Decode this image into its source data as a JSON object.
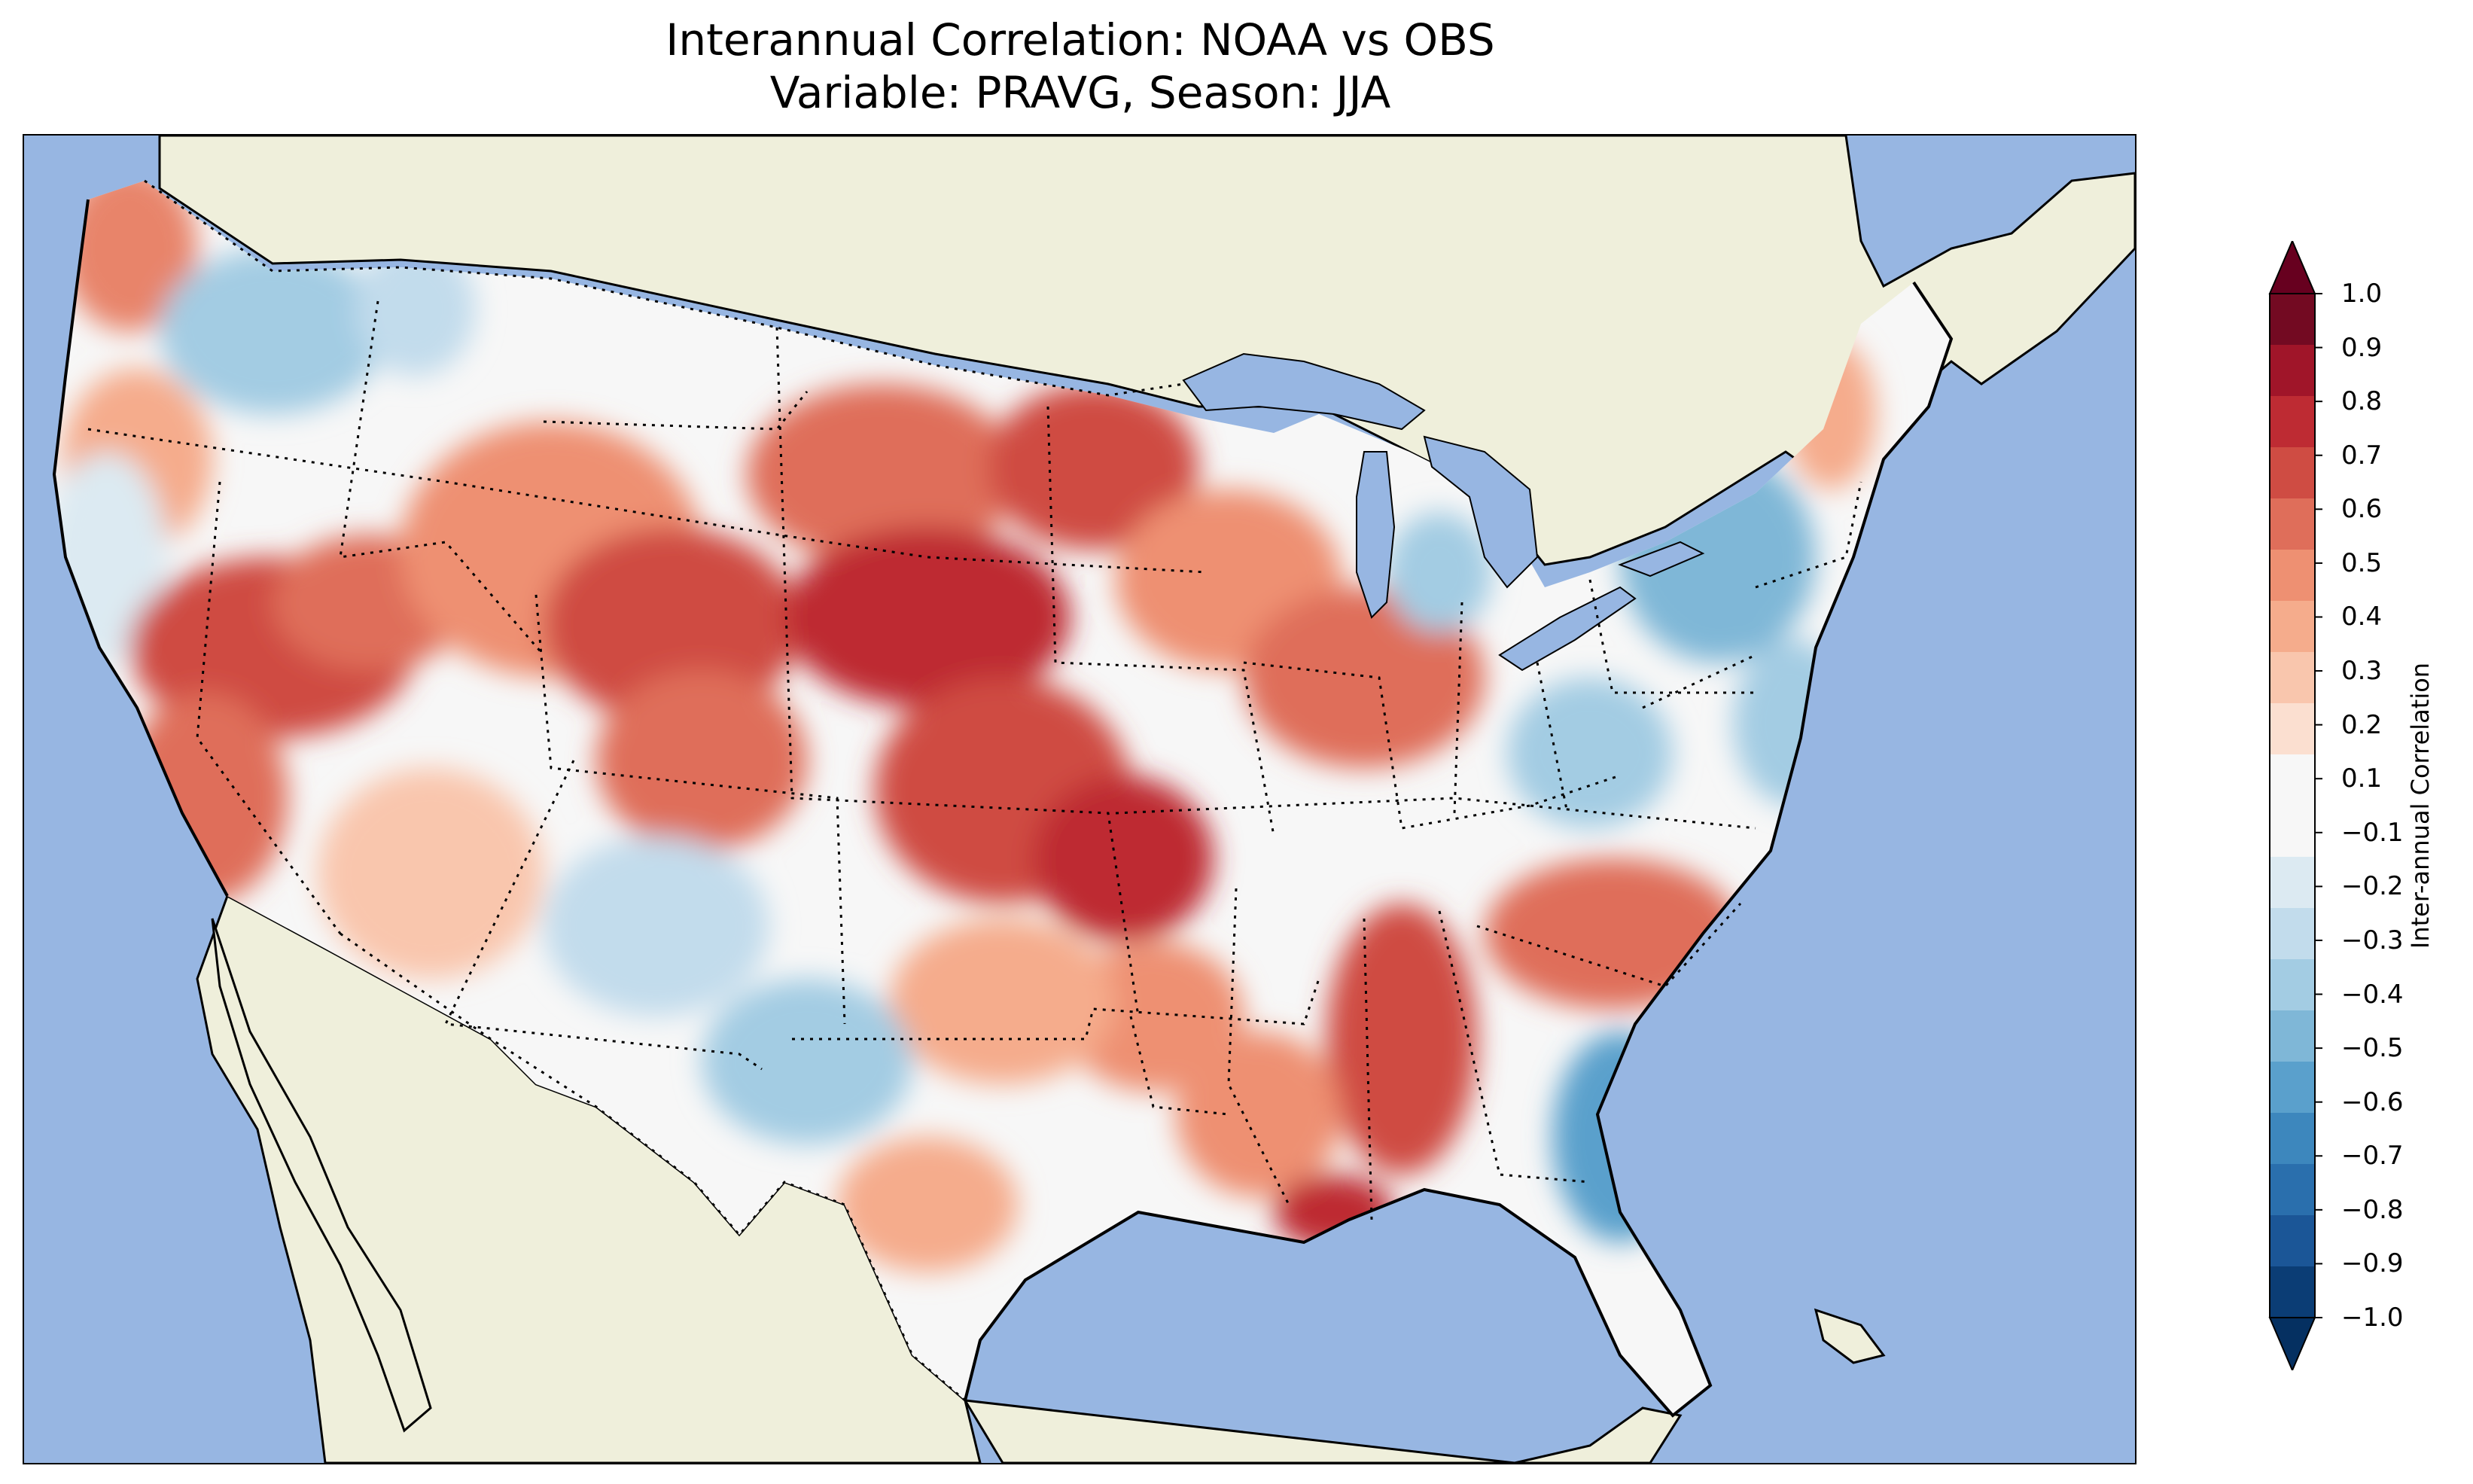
{
  "title": {
    "line1": "Interannual Correlation: NOAA vs OBS",
    "line2": "Variable: PRAVG, Season: JJA"
  },
  "colors": {
    "ocean": "#97b6e2",
    "land": "#efefdb",
    "border": "#000000"
  },
  "colorbar": {
    "label": "Inter-annual Correlation",
    "ticks": [
      "1.0",
      "0.9",
      "0.8",
      "0.7",
      "0.6",
      "0.5",
      "0.4",
      "0.3",
      "0.2",
      "0.1",
      "−0.1",
      "−0.2",
      "−0.3",
      "−0.4",
      "−0.5",
      "−0.6",
      "−0.7",
      "−0.8",
      "−0.9",
      "−1.0"
    ],
    "levels": [
      {
        "from": 0.9,
        "to": 1.0,
        "color": "#730a22"
      },
      {
        "from": 0.8,
        "to": 0.9,
        "color": "#a01529"
      },
      {
        "from": 0.7,
        "to": 0.8,
        "color": "#be2b33"
      },
      {
        "from": 0.6,
        "to": 0.7,
        "color": "#cf4c43"
      },
      {
        "from": 0.5,
        "to": 0.6,
        "color": "#df6e5a"
      },
      {
        "from": 0.4,
        "to": 0.5,
        "color": "#ee9072"
      },
      {
        "from": 0.3,
        "to": 0.4,
        "color": "#f5ac8c"
      },
      {
        "from": 0.2,
        "to": 0.3,
        "color": "#f9c6ad"
      },
      {
        "from": 0.1,
        "to": 0.2,
        "color": "#fbdfd0"
      },
      {
        "from": -0.1,
        "to": 0.1,
        "color": "#f7f7f7"
      },
      {
        "from": -0.2,
        "to": -0.1,
        "color": "#dceaf2"
      },
      {
        "from": -0.3,
        "to": -0.2,
        "color": "#c2dcec"
      },
      {
        "from": -0.4,
        "to": -0.3,
        "color": "#a3cce3"
      },
      {
        "from": -0.5,
        "to": -0.4,
        "color": "#7fb7d7"
      },
      {
        "from": -0.6,
        "to": -0.5,
        "color": "#5aa0cc"
      },
      {
        "from": -0.7,
        "to": -0.6,
        "color": "#3d87bd"
      },
      {
        "from": -0.8,
        "to": -0.7,
        "color": "#2a6fad"
      },
      {
        "from": -0.9,
        "to": -0.8,
        "color": "#1b5697"
      },
      {
        "from": -1.0,
        "to": -0.9,
        "color": "#0b3d75"
      }
    ],
    "over_color": "#67001f",
    "under_color": "#053061"
  }
}
